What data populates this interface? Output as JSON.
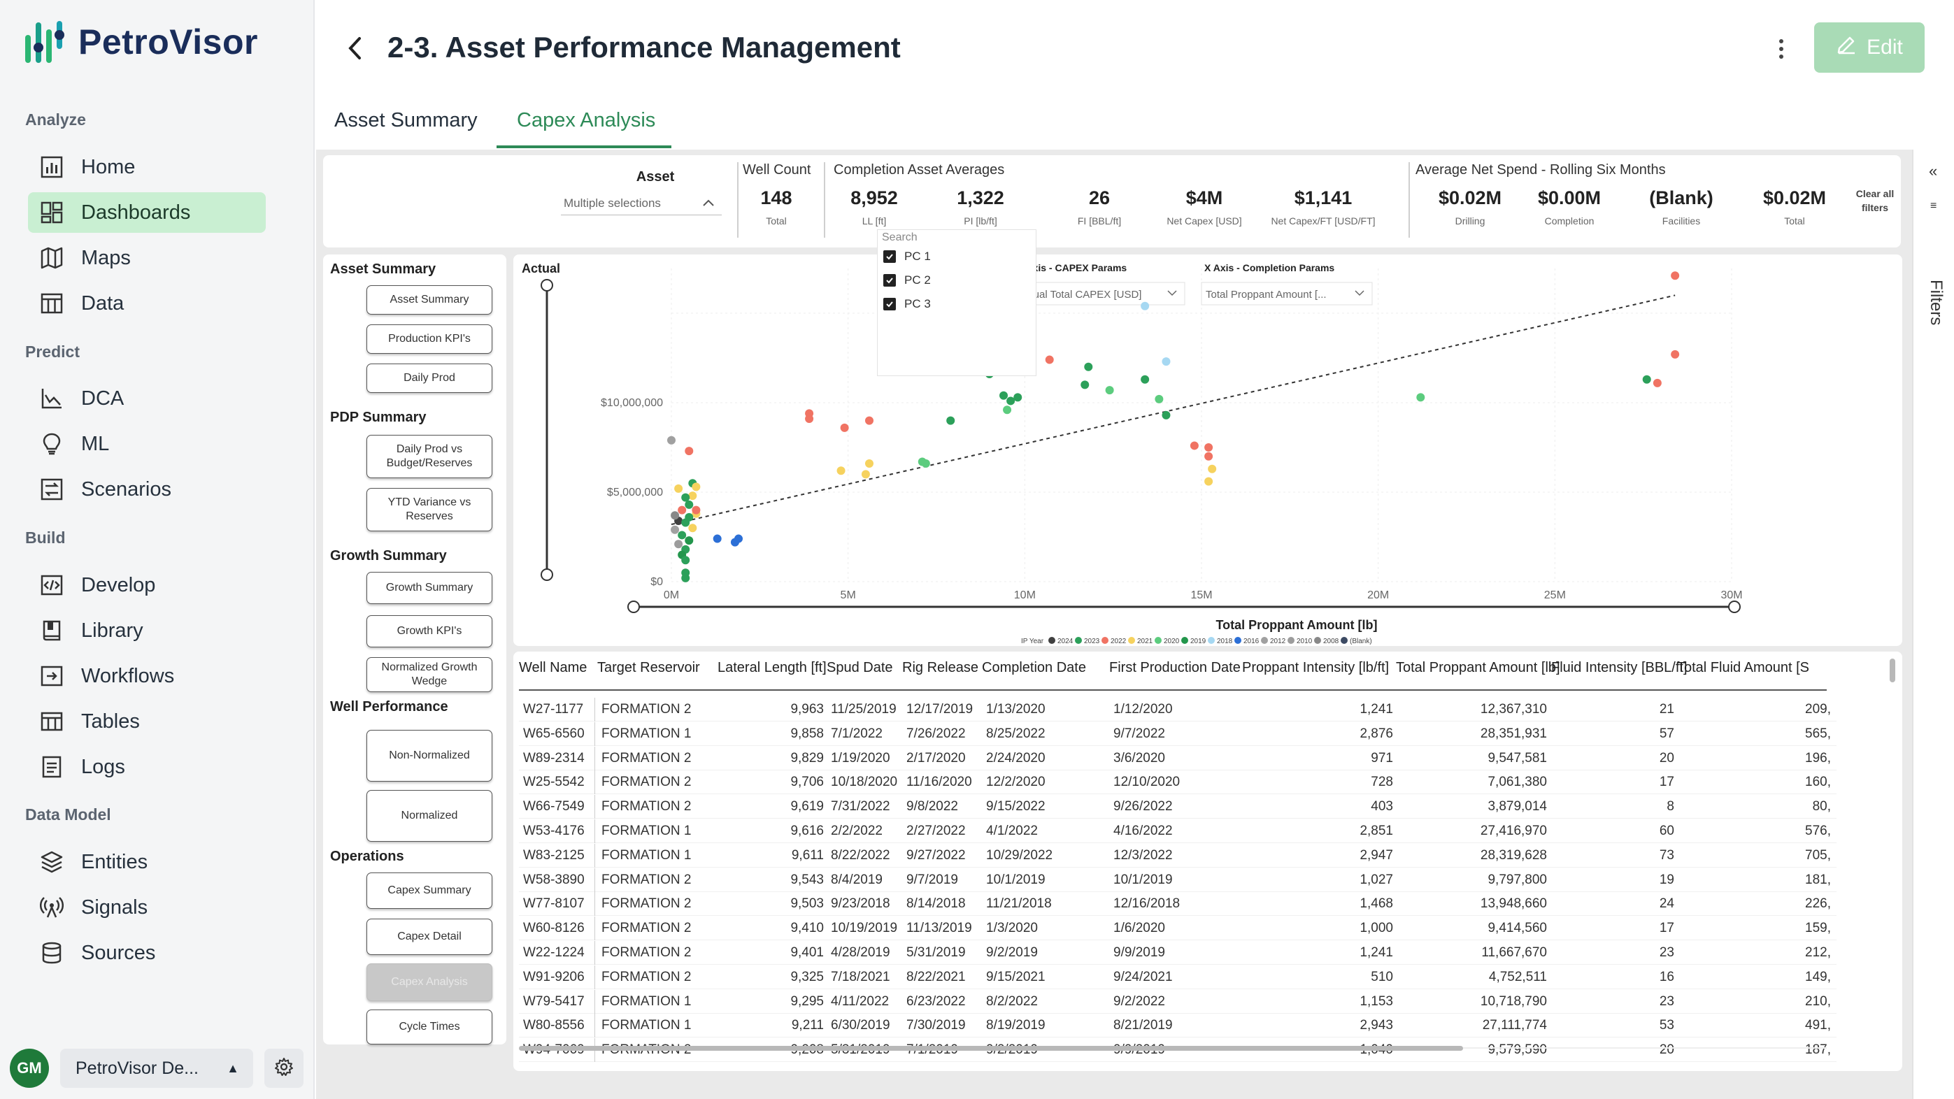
{
  "app": {
    "brand": "PetroVisor",
    "page_title": "2-3. Asset Performance Management",
    "edit_label": "Edit"
  },
  "sidebar": {
    "sections": [
      {
        "label": "Analyze",
        "items": [
          {
            "label": "Home",
            "icon": "chart-icon"
          },
          {
            "label": "Dashboards",
            "icon": "dashboard-icon",
            "active": true
          },
          {
            "label": "Maps",
            "icon": "map-icon"
          },
          {
            "label": "Data",
            "icon": "table-icon"
          }
        ]
      },
      {
        "label": "Predict",
        "items": [
          {
            "label": "DCA",
            "icon": "line-chart-icon"
          },
          {
            "label": "ML",
            "icon": "lightbulb-icon"
          },
          {
            "label": "Scenarios",
            "icon": "scenario-icon"
          }
        ]
      },
      {
        "label": "Build",
        "items": [
          {
            "label": "Develop",
            "icon": "code-icon"
          },
          {
            "label": "Library",
            "icon": "book-icon"
          },
          {
            "label": "Workflows",
            "icon": "workflow-icon"
          },
          {
            "label": "Tables",
            "icon": "tables-icon"
          },
          {
            "label": "Logs",
            "icon": "log-icon"
          }
        ]
      },
      {
        "label": "Data Model",
        "items": [
          {
            "label": "Entities",
            "icon": "layers-icon"
          },
          {
            "label": "Signals",
            "icon": "signal-icon"
          },
          {
            "label": "Sources",
            "icon": "database-icon"
          }
        ]
      }
    ],
    "user_initials": "GM",
    "workspace": "PetroVisor De..."
  },
  "tabs": [
    {
      "label": "Asset Summary"
    },
    {
      "label": "Capex Analysis",
      "active": true
    }
  ],
  "filters_label": "Filters",
  "slicer": {
    "label": "Asset",
    "value": "Multiple selections",
    "search": "Search",
    "options": [
      "PC 1",
      "PC 2",
      "PC 3"
    ]
  },
  "kpis": {
    "well_count": {
      "title": "Well Count",
      "value": "148",
      "label": "Total"
    },
    "completion_title": "Completion Asset Averages",
    "completion": [
      {
        "value": "8,952",
        "label": "LL [ft]"
      },
      {
        "value": "1,322",
        "label": "PI [lb/ft]"
      },
      {
        "value": "26",
        "label": "FI [BBL/ft]"
      },
      {
        "value": "$4M",
        "label": "Net Capex [USD]"
      },
      {
        "value": "$1,141",
        "label": "Net Capex/FT [USD/FT]"
      }
    ],
    "spend_title": "Average Net Spend - Rolling Six Months",
    "spend": [
      {
        "value": "$0.02M",
        "label": "Drilling"
      },
      {
        "value": "$0.00M",
        "label": "Completion"
      },
      {
        "value": "(Blank)",
        "label": "Facilities"
      },
      {
        "value": "$0.02M",
        "label": "Total"
      }
    ],
    "clear_filters": "Clear all filters"
  },
  "left_panel": {
    "sections": [
      {
        "label": "Asset Summary",
        "buttons": [
          "Asset Summary",
          "Production KPI's",
          "Daily Prod"
        ]
      },
      {
        "label": "PDP Summary",
        "buttons": [
          "Daily Prod vs Budget/Reserves",
          "YTD Variance vs Reserves"
        ]
      },
      {
        "label": "Growth Summary",
        "buttons": [
          "Growth Summary",
          "Growth KPI's",
          "Normalized Growth Wedge"
        ]
      },
      {
        "label": "Well Performance",
        "buttons": [
          "Non-Normalized",
          "Normalized"
        ]
      },
      {
        "label": "Operations",
        "buttons": [
          "Capex Summary",
          "Capex Detail",
          "Capex Analysis",
          "Cycle Times"
        ]
      }
    ]
  },
  "chart_data": {
    "type": "scatter",
    "y_label_partial": "Actual",
    "y_param_title": "Y Axis - CAPEX Params",
    "y_param_value": "Actual Total CAPEX [USD]",
    "x_param_title": "X Axis - Completion Params",
    "x_param_value": "Total Proppant Amount [...",
    "xlabel": "Total Proppant Amount [lb]",
    "x_ticks": [
      "0M",
      "5M",
      "10M",
      "15M",
      "20M",
      "25M",
      "30M"
    ],
    "y_ticks": [
      "$0",
      "$5,000,000",
      "$10,000,000"
    ],
    "xlim": [
      0,
      30000000
    ],
    "ylim": [
      0,
      17500000
    ],
    "legend_title": "IP Year",
    "legend": [
      {
        "name": "2024",
        "color": "#404040"
      },
      {
        "name": "2023",
        "color": "#2ca05a"
      },
      {
        "name": "2022",
        "color": "#f07363"
      },
      {
        "name": "2021",
        "color": "#f6d25e"
      },
      {
        "name": "2020",
        "color": "#5ccc7e"
      },
      {
        "name": "2019",
        "color": "#23964c"
      },
      {
        "name": "2018",
        "color": "#a6d8f2"
      },
      {
        "name": "2016",
        "color": "#2c6fd6"
      },
      {
        "name": "2012",
        "color": "#a0a0a0"
      },
      {
        "name": "2010",
        "color": "#9c9c9c"
      },
      {
        "name": "2008",
        "color": "#888888"
      },
      {
        "name": "(Blank)",
        "color": "#3c4a63"
      }
    ],
    "points": [
      {
        "x": 28400000,
        "y": 17100000,
        "c": 2
      },
      {
        "x": 28400000,
        "y": 12700000,
        "c": 2
      },
      {
        "x": 27600000,
        "y": 11300000,
        "c": 1
      },
      {
        "x": 27900000,
        "y": 11100000,
        "c": 2
      },
      {
        "x": 21200000,
        "y": 10300000,
        "c": 4
      },
      {
        "x": 13400000,
        "y": 15400000,
        "c": 6
      },
      {
        "x": 14000000,
        "y": 12300000,
        "c": 6
      },
      {
        "x": 10700000,
        "y": 12400000,
        "c": 2
      },
      {
        "x": 11800000,
        "y": 12000000,
        "c": 1
      },
      {
        "x": 11700000,
        "y": 11000000,
        "c": 1
      },
      {
        "x": 12400000,
        "y": 10700000,
        "c": 4
      },
      {
        "x": 13400000,
        "y": 11300000,
        "c": 1
      },
      {
        "x": 13800000,
        "y": 10200000,
        "c": 4
      },
      {
        "x": 14000000,
        "y": 9300000,
        "c": 1
      },
      {
        "x": 9000000,
        "y": 11600000,
        "c": 1
      },
      {
        "x": 9400000,
        "y": 10400000,
        "c": 1
      },
      {
        "x": 9800000,
        "y": 10300000,
        "c": 1
      },
      {
        "x": 9600000,
        "y": 10100000,
        "c": 1
      },
      {
        "x": 9500000,
        "y": 9600000,
        "c": 4
      },
      {
        "x": 7900000,
        "y": 9000000,
        "c": 1
      },
      {
        "x": 3900000,
        "y": 9400000,
        "c": 2
      },
      {
        "x": 3900000,
        "y": 9100000,
        "c": 2
      },
      {
        "x": 4900000,
        "y": 8600000,
        "c": 2
      },
      {
        "x": 5600000,
        "y": 9000000,
        "c": 2
      },
      {
        "x": 7100000,
        "y": 6700000,
        "c": 4
      },
      {
        "x": 7200000,
        "y": 6600000,
        "c": 4
      },
      {
        "x": 5600000,
        "y": 6600000,
        "c": 3
      },
      {
        "x": 5500000,
        "y": 6000000,
        "c": 3
      },
      {
        "x": 4800000,
        "y": 6200000,
        "c": 3
      },
      {
        "x": 14800000,
        "y": 7600000,
        "c": 2
      },
      {
        "x": 15200000,
        "y": 7500000,
        "c": 2
      },
      {
        "x": 15200000,
        "y": 7000000,
        "c": 2
      },
      {
        "x": 15300000,
        "y": 6300000,
        "c": 3
      },
      {
        "x": 15200000,
        "y": 5600000,
        "c": 3
      },
      {
        "x": 1300000,
        "y": 2400000,
        "c": 7
      },
      {
        "x": 1800000,
        "y": 2200000,
        "c": 7
      },
      {
        "x": 1900000,
        "y": 2400000,
        "c": 7
      },
      {
        "x": 500000,
        "y": 7300000,
        "c": 2
      },
      {
        "x": 0,
        "y": 7900000,
        "c": 8
      },
      {
        "x": 600000,
        "y": 5500000,
        "c": 1
      },
      {
        "x": 700000,
        "y": 5300000,
        "c": 3
      },
      {
        "x": 200000,
        "y": 5200000,
        "c": 3
      },
      {
        "x": 600000,
        "y": 4800000,
        "c": 3
      },
      {
        "x": 400000,
        "y": 4700000,
        "c": 1
      },
      {
        "x": 500000,
        "y": 4300000,
        "c": 1
      },
      {
        "x": 300000,
        "y": 4000000,
        "c": 2
      },
      {
        "x": 700000,
        "y": 3800000,
        "c": 3
      },
      {
        "x": 500000,
        "y": 3600000,
        "c": 1
      },
      {
        "x": 200000,
        "y": 3400000,
        "c": 0
      },
      {
        "x": 400000,
        "y": 3300000,
        "c": 1
      },
      {
        "x": 600000,
        "y": 3000000,
        "c": 3
      },
      {
        "x": 100000,
        "y": 2900000,
        "c": 8
      },
      {
        "x": 300000,
        "y": 2600000,
        "c": 1
      },
      {
        "x": 500000,
        "y": 2300000,
        "c": 5
      },
      {
        "x": 200000,
        "y": 2100000,
        "c": 9
      },
      {
        "x": 400000,
        "y": 1800000,
        "c": 1
      },
      {
        "x": 300000,
        "y": 1500000,
        "c": 5
      },
      {
        "x": 400000,
        "y": 1200000,
        "c": 1
      },
      {
        "x": 400000,
        "y": 500000,
        "c": 1
      },
      {
        "x": 400000,
        "y": 200000,
        "c": 1
      },
      {
        "x": 700000,
        "y": 4000000,
        "c": 2
      },
      {
        "x": 100000,
        "y": 3700000,
        "c": 10
      }
    ],
    "trendline": {
      "x": [
        0,
        28400000
      ],
      "y": [
        3200000,
        16000000
      ]
    }
  },
  "table": {
    "columns": [
      "Well Name",
      "Target Reservoir",
      "Lateral Length [ft]",
      "Spud Date",
      "Rig Release",
      "Completion Date",
      "First Production Date",
      "Proppant Intensity [lb/ft]",
      "Total Proppant Amount [lb]",
      "Fluid Intensity [BBL/ft]",
      "Total Fluid Amount [S"
    ],
    "rows": [
      [
        "W27-1177",
        "FORMATION 2",
        "9,963",
        "11/25/2019",
        "12/17/2019",
        "1/13/2020",
        "1/12/2020",
        "1,241",
        "12,367,310",
        "21",
        "209,"
      ],
      [
        "W65-6560",
        "FORMATION 1",
        "9,858",
        "7/1/2022",
        "7/26/2022",
        "8/25/2022",
        "9/7/2022",
        "2,876",
        "28,351,931",
        "57",
        "565,"
      ],
      [
        "W89-2314",
        "FORMATION 2",
        "9,829",
        "1/19/2020",
        "2/17/2020",
        "2/24/2020",
        "3/6/2020",
        "971",
        "9,547,581",
        "20",
        "196,"
      ],
      [
        "W25-5542",
        "FORMATION 2",
        "9,706",
        "10/18/2020",
        "11/16/2020",
        "12/2/2020",
        "12/10/2020",
        "728",
        "7,061,380",
        "17",
        "160,"
      ],
      [
        "W66-7549",
        "FORMATION 2",
        "9,619",
        "7/31/2022",
        "9/8/2022",
        "9/15/2022",
        "9/26/2022",
        "403",
        "3,879,014",
        "8",
        "80,"
      ],
      [
        "W53-4176",
        "FORMATION 1",
        "9,616",
        "2/2/2022",
        "2/27/2022",
        "4/1/2022",
        "4/16/2022",
        "2,851",
        "27,416,970",
        "60",
        "576,"
      ],
      [
        "W83-2125",
        "FORMATION 1",
        "9,611",
        "8/22/2022",
        "9/27/2022",
        "10/29/2022",
        "12/3/2022",
        "2,947",
        "28,319,628",
        "73",
        "705,"
      ],
      [
        "W58-3890",
        "FORMATION 2",
        "9,543",
        "8/4/2019",
        "9/7/2019",
        "10/1/2019",
        "10/1/2019",
        "1,027",
        "9,797,800",
        "19",
        "181,"
      ],
      [
        "W77-8107",
        "FORMATION 2",
        "9,503",
        "9/23/2018",
        "8/14/2018",
        "11/21/2018",
        "12/16/2018",
        "1,468",
        "13,948,660",
        "24",
        "226,"
      ],
      [
        "W60-8126",
        "FORMATION 2",
        "9,410",
        "10/19/2019",
        "11/13/2019",
        "1/3/2020",
        "1/6/2020",
        "1,000",
        "9,414,560",
        "17",
        "159,"
      ],
      [
        "W22-1224",
        "FORMATION 2",
        "9,401",
        "4/28/2019",
        "5/31/2019",
        "9/2/2019",
        "9/9/2019",
        "1,241",
        "11,667,670",
        "23",
        "212,"
      ],
      [
        "W91-9206",
        "FORMATION 2",
        "9,325",
        "7/18/2021",
        "8/22/2021",
        "9/15/2021",
        "9/24/2021",
        "510",
        "4,752,511",
        "16",
        "149,"
      ],
      [
        "W79-5417",
        "FORMATION 1",
        "9,295",
        "4/11/2022",
        "6/23/2022",
        "8/2/2022",
        "9/2/2022",
        "1,153",
        "10,718,790",
        "23",
        "210,"
      ],
      [
        "W80-8556",
        "FORMATION 1",
        "9,211",
        "6/30/2019",
        "7/30/2019",
        "8/19/2019",
        "8/21/2019",
        "2,943",
        "27,111,774",
        "53",
        "491,"
      ],
      [
        "W94-7069",
        "FORMATION 2",
        "9,208",
        "5/31/2019",
        "7/1/2019",
        "9/2/2019",
        "9/9/2019",
        "1,040",
        "9,579,590",
        "20",
        "187,"
      ]
    ]
  }
}
